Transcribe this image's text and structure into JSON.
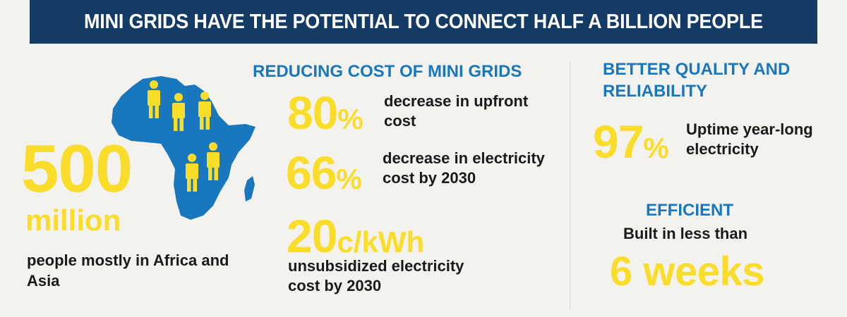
{
  "banner": {
    "title": "MINI GRIDS HAVE THE POTENTIAL TO CONNECT HALF A BILLION PEOPLE"
  },
  "population": {
    "value": "500",
    "unit": "million",
    "description": "people mostly in Africa and Asia"
  },
  "reducing_cost": {
    "title": "REDUCING COST OF MINI GRIDS",
    "stats": [
      {
        "value": "80",
        "suffix": "%",
        "description": "decrease in upfront cost"
      },
      {
        "value": "66",
        "suffix": "%",
        "description": "decrease in electricity cost by 2030"
      },
      {
        "value": "20",
        "suffix": "c/kWh",
        "description": "unsubsidized electricity cost by 2030"
      }
    ]
  },
  "quality": {
    "title": "BETTER QUALITY AND RELIABILITY",
    "value": "97",
    "suffix": "%",
    "description": "Uptime year-long electricity"
  },
  "efficient": {
    "title": "EFFICIENT",
    "intro": "Built in less than",
    "value": "6 weeks"
  },
  "colors": {
    "banner": "#143a66",
    "accent_yellow": "#fadc2a",
    "heading_blue": "#1877bd",
    "africa_blue": "#1877bd",
    "background": "#f3f2ef"
  },
  "icons": [
    "africa-map-icon",
    "person-icon"
  ]
}
